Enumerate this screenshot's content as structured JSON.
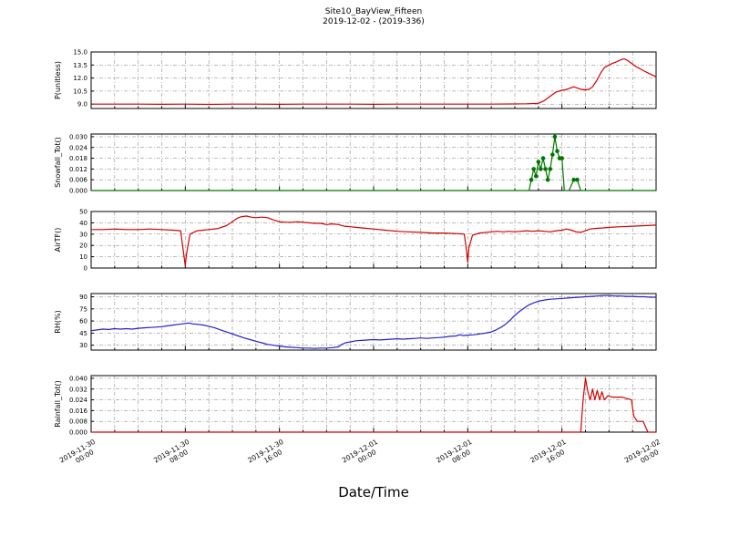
{
  "title": "Site10_BayView_Fifteen",
  "subtitle": "2019-12-02 - (2019-336)",
  "xlabel": "Date/Time",
  "chart_data": {
    "type": "line",
    "x_unit": "hours since 2019-11-30 00:00",
    "x_range": [
      0,
      48
    ],
    "grid_step_hours": 2,
    "major_step_hours": 8,
    "grid_style": "dash-dot",
    "x_ticks": [
      {
        "hour": 0,
        "date": "2019-11-30",
        "time": "00:00"
      },
      {
        "hour": 8,
        "date": "2019-11-30",
        "time": "08:00"
      },
      {
        "hour": 16,
        "date": "2019-11-30",
        "time": "16:00"
      },
      {
        "hour": 24,
        "date": "2019-12-01",
        "time": "00:00"
      },
      {
        "hour": 32,
        "date": "2019-12-01",
        "time": "08:00"
      },
      {
        "hour": 40,
        "date": "2019-12-01",
        "time": "16:00"
      },
      {
        "hour": 48,
        "date": "2019-12-02",
        "time": "00:00"
      }
    ],
    "panels": [
      {
        "ylabel": "P(unitless)",
        "color": "#d40000",
        "ylim": [
          8.5,
          15.0
        ],
        "yticks": [
          9.0,
          10.5,
          12.0,
          13.5,
          15.0
        ],
        "decimals": 1,
        "markers": false,
        "points": [
          [
            0,
            9.0
          ],
          [
            2,
            9.0
          ],
          [
            4,
            9.0
          ],
          [
            6,
            8.98
          ],
          [
            8,
            9.0
          ],
          [
            10,
            8.97
          ],
          [
            12,
            9.0
          ],
          [
            14,
            9.0
          ],
          [
            16,
            8.98
          ],
          [
            18,
            9.0
          ],
          [
            20,
            9.0
          ],
          [
            22,
            9.0
          ],
          [
            24,
            8.98
          ],
          [
            26,
            9.0
          ],
          [
            28,
            9.0
          ],
          [
            30,
            9.0
          ],
          [
            32,
            9.0
          ],
          [
            34,
            9.0
          ],
          [
            36,
            9.02
          ],
          [
            37,
            9.05
          ],
          [
            38,
            9.1
          ],
          [
            38.5,
            9.4
          ],
          [
            39,
            9.9
          ],
          [
            39.5,
            10.4
          ],
          [
            40,
            10.6
          ],
          [
            40.3,
            10.65
          ],
          [
            40.6,
            10.8
          ],
          [
            41,
            11.0
          ],
          [
            41.3,
            10.85
          ],
          [
            41.6,
            10.7
          ],
          [
            42,
            10.65
          ],
          [
            42.3,
            10.7
          ],
          [
            42.6,
            11.0
          ],
          [
            43,
            11.8
          ],
          [
            43.3,
            12.6
          ],
          [
            43.6,
            13.2
          ],
          [
            44,
            13.5
          ],
          [
            44.3,
            13.7
          ],
          [
            44.6,
            13.85
          ],
          [
            45,
            14.1
          ],
          [
            45.3,
            14.2
          ],
          [
            45.6,
            14.0
          ],
          [
            46,
            13.6
          ],
          [
            46.3,
            13.3
          ],
          [
            46.6,
            13.1
          ],
          [
            47,
            12.8
          ],
          [
            47.3,
            12.6
          ],
          [
            47.6,
            12.4
          ],
          [
            48,
            12.15
          ]
        ]
      },
      {
        "ylabel": "Snowfall_Tot()",
        "color": "#007700",
        "ylim": [
          0,
          0.0315
        ],
        "yticks": [
          0.0,
          0.006,
          0.012,
          0.018,
          0.024,
          0.03
        ],
        "decimals": 3,
        "markers": true,
        "points": [
          [
            0,
            0
          ],
          [
            4,
            0
          ],
          [
            8,
            0
          ],
          [
            12,
            0
          ],
          [
            16,
            0
          ],
          [
            20,
            0
          ],
          [
            24,
            0
          ],
          [
            28,
            0
          ],
          [
            32,
            0
          ],
          [
            35,
            0
          ],
          [
            36.5,
            0
          ],
          [
            37.2,
            0
          ],
          [
            37.4,
            0.006
          ],
          [
            37.6,
            0.012
          ],
          [
            37.8,
            0.008
          ],
          [
            38.0,
            0.016
          ],
          [
            38.2,
            0.012
          ],
          [
            38.4,
            0.018
          ],
          [
            38.6,
            0.012
          ],
          [
            38.8,
            0.006
          ],
          [
            39.0,
            0.012
          ],
          [
            39.2,
            0.02
          ],
          [
            39.4,
            0.03
          ],
          [
            39.6,
            0.022
          ],
          [
            39.8,
            0.018
          ],
          [
            40.0,
            0.018
          ],
          [
            40.2,
            0
          ],
          [
            40.6,
            0
          ],
          [
            41.0,
            0.006
          ],
          [
            41.3,
            0.006
          ],
          [
            41.6,
            0
          ],
          [
            42,
            0
          ],
          [
            43,
            0
          ],
          [
            44,
            0
          ],
          [
            45,
            0
          ],
          [
            46,
            0
          ],
          [
            47,
            0
          ],
          [
            48,
            0
          ]
        ]
      },
      {
        "ylabel": "AirTF()",
        "color": "#d40000",
        "ylim": [
          0,
          50
        ],
        "yticks": [
          0,
          10,
          20,
          30,
          40,
          50
        ],
        "decimals": 0,
        "markers": false,
        "points": [
          [
            0,
            34
          ],
          [
            1,
            34
          ],
          [
            2,
            34.5
          ],
          [
            3,
            34
          ],
          [
            4,
            34
          ],
          [
            5,
            34.5
          ],
          [
            6,
            34
          ],
          [
            7,
            33.5
          ],
          [
            7.6,
            33
          ],
          [
            7.9,
            10
          ],
          [
            8,
            2
          ],
          [
            8.1,
            12
          ],
          [
            8.4,
            30
          ],
          [
            9,
            33
          ],
          [
            10,
            34
          ],
          [
            10.8,
            35
          ],
          [
            11.5,
            37.5
          ],
          [
            12,
            41
          ],
          [
            12.4,
            44
          ],
          [
            12.8,
            45.5
          ],
          [
            13.2,
            46
          ],
          [
            13.6,
            45
          ],
          [
            14,
            44.5
          ],
          [
            14.5,
            45
          ],
          [
            15,
            44.5
          ],
          [
            15.5,
            42.5
          ],
          [
            16,
            41
          ],
          [
            16.5,
            40.5
          ],
          [
            17,
            40.5
          ],
          [
            17.5,
            41
          ],
          [
            18,
            40.5
          ],
          [
            18.5,
            40
          ],
          [
            19,
            39.5
          ],
          [
            19.5,
            39.5
          ],
          [
            20,
            38.5
          ],
          [
            20.5,
            39
          ],
          [
            21,
            38.5
          ],
          [
            21.5,
            37
          ],
          [
            22,
            36.5
          ],
          [
            22.5,
            36
          ],
          [
            23,
            35.5
          ],
          [
            23.5,
            35
          ],
          [
            24,
            34.5
          ],
          [
            25,
            33.5
          ],
          [
            26,
            32.5
          ],
          [
            27,
            32
          ],
          [
            28,
            31.5
          ],
          [
            29,
            31
          ],
          [
            30,
            31
          ],
          [
            31,
            30.5
          ],
          [
            31.7,
            30
          ],
          [
            31.9,
            15
          ],
          [
            32,
            5
          ],
          [
            32.1,
            18
          ],
          [
            32.4,
            29
          ],
          [
            33,
            31
          ],
          [
            34,
            32
          ],
          [
            34.5,
            32.5
          ],
          [
            35,
            32
          ],
          [
            35.5,
            32.5
          ],
          [
            36,
            32
          ],
          [
            36.5,
            32.5
          ],
          [
            37,
            33
          ],
          [
            37.5,
            32.5
          ],
          [
            38,
            33
          ],
          [
            38.5,
            32.5
          ],
          [
            39,
            32
          ],
          [
            39.5,
            33
          ],
          [
            40,
            33.5
          ],
          [
            40.4,
            34.5
          ],
          [
            40.8,
            33.5
          ],
          [
            41.2,
            32
          ],
          [
            41.6,
            31.5
          ],
          [
            42,
            33
          ],
          [
            42.4,
            34.5
          ],
          [
            42.8,
            35
          ],
          [
            43.5,
            35.5
          ],
          [
            44,
            36
          ],
          [
            45,
            36.5
          ],
          [
            46,
            37
          ],
          [
            47,
            37.5
          ],
          [
            48,
            38
          ]
        ]
      },
      {
        "ylabel": "RH(%)",
        "color": "#2222cc",
        "ylim": [
          24,
          94
        ],
        "yticks": [
          30,
          45,
          60,
          75,
          90
        ],
        "decimals": 0,
        "markers": false,
        "points": [
          [
            0,
            48
          ],
          [
            0.5,
            49
          ],
          [
            1,
            50
          ],
          [
            1.5,
            49.5
          ],
          [
            2,
            50.5
          ],
          [
            2.5,
            50
          ],
          [
            3,
            50.5
          ],
          [
            3.5,
            50
          ],
          [
            4,
            51
          ],
          [
            4.5,
            51.5
          ],
          [
            5,
            52
          ],
          [
            5.5,
            52.5
          ],
          [
            6,
            53
          ],
          [
            6.5,
            54
          ],
          [
            7,
            55
          ],
          [
            7.5,
            56
          ],
          [
            8,
            57
          ],
          [
            8.3,
            57.5
          ],
          [
            8.6,
            56.5
          ],
          [
            9,
            56
          ],
          [
            9.5,
            55
          ],
          [
            10,
            53.5
          ],
          [
            10.5,
            51.5
          ],
          [
            11,
            49
          ],
          [
            11.5,
            46.5
          ],
          [
            12,
            44
          ],
          [
            12.5,
            41.5
          ],
          [
            13,
            39
          ],
          [
            13.5,
            37
          ],
          [
            14,
            35
          ],
          [
            14.5,
            33
          ],
          [
            15,
            31
          ],
          [
            15.5,
            30
          ],
          [
            16,
            29
          ],
          [
            16.5,
            28
          ],
          [
            17,
            27.5
          ],
          [
            17.5,
            27
          ],
          [
            18,
            26.5
          ],
          [
            18.5,
            26.5
          ],
          [
            19,
            26
          ],
          [
            19.5,
            26.5
          ],
          [
            20,
            26.5
          ],
          [
            20.5,
            27
          ],
          [
            21,
            28
          ],
          [
            21.3,
            31
          ],
          [
            21.6,
            33
          ],
          [
            22,
            34
          ],
          [
            22.5,
            35.5
          ],
          [
            23,
            36
          ],
          [
            23.5,
            36.5
          ],
          [
            24,
            37
          ],
          [
            24.5,
            36.5
          ],
          [
            25,
            37
          ],
          [
            25.5,
            37.5
          ],
          [
            26,
            38
          ],
          [
            26.5,
            37.5
          ],
          [
            27,
            38
          ],
          [
            27.5,
            38.5
          ],
          [
            28,
            39
          ],
          [
            28.5,
            38.5
          ],
          [
            29,
            39
          ],
          [
            29.5,
            39.5
          ],
          [
            30,
            40
          ],
          [
            30.5,
            41
          ],
          [
            31,
            41.5
          ],
          [
            31.3,
            43
          ],
          [
            31.6,
            42
          ],
          [
            32,
            42.5
          ],
          [
            32.5,
            43
          ],
          [
            33,
            44
          ],
          [
            33.5,
            45
          ],
          [
            34,
            46.5
          ],
          [
            34.4,
            49
          ],
          [
            34.8,
            52
          ],
          [
            35.2,
            56
          ],
          [
            35.6,
            61
          ],
          [
            36,
            67
          ],
          [
            36.4,
            72
          ],
          [
            36.8,
            76
          ],
          [
            37.2,
            80
          ],
          [
            37.6,
            82.5
          ],
          [
            38,
            84.5
          ],
          [
            38.5,
            86
          ],
          [
            39,
            87
          ],
          [
            39.5,
            87.5
          ],
          [
            40,
            88
          ],
          [
            40.5,
            88.5
          ],
          [
            41,
            89
          ],
          [
            41.5,
            89.5
          ],
          [
            42,
            90
          ],
          [
            42.5,
            90.5
          ],
          [
            43,
            91
          ],
          [
            43.5,
            91.5
          ],
          [
            44,
            91.5
          ],
          [
            44.5,
            91
          ],
          [
            45,
            91
          ],
          [
            45.5,
            90.5
          ],
          [
            46,
            90.5
          ],
          [
            46.5,
            90
          ],
          [
            47,
            90
          ],
          [
            47.5,
            89.5
          ],
          [
            48,
            89.5
          ]
        ]
      },
      {
        "ylabel": "Rainfall_Tot()",
        "color": "#d40000",
        "ylim": [
          0,
          0.042
        ],
        "yticks": [
          0.0,
          0.008,
          0.016,
          0.024,
          0.032,
          0.04
        ],
        "decimals": 3,
        "markers": false,
        "points": [
          [
            0,
            0
          ],
          [
            10,
            0
          ],
          [
            20,
            0
          ],
          [
            30,
            0
          ],
          [
            40,
            0
          ],
          [
            41.6,
            0
          ],
          [
            41.8,
            0.024
          ],
          [
            42.0,
            0.04
          ],
          [
            42.2,
            0.03
          ],
          [
            42.4,
            0.024
          ],
          [
            42.6,
            0.032
          ],
          [
            42.8,
            0.024
          ],
          [
            43.0,
            0.031
          ],
          [
            43.2,
            0.024
          ],
          [
            43.4,
            0.03
          ],
          [
            43.6,
            0.024
          ],
          [
            43.9,
            0.027
          ],
          [
            44.3,
            0.026
          ],
          [
            44.7,
            0.026
          ],
          [
            45.1,
            0.026
          ],
          [
            45.5,
            0.025
          ],
          [
            45.9,
            0.024
          ],
          [
            46.1,
            0.012
          ],
          [
            46.4,
            0.008
          ],
          [
            46.9,
            0.008
          ],
          [
            47.1,
            0.004
          ],
          [
            47.3,
            0
          ],
          [
            48,
            0
          ]
        ]
      }
    ]
  }
}
